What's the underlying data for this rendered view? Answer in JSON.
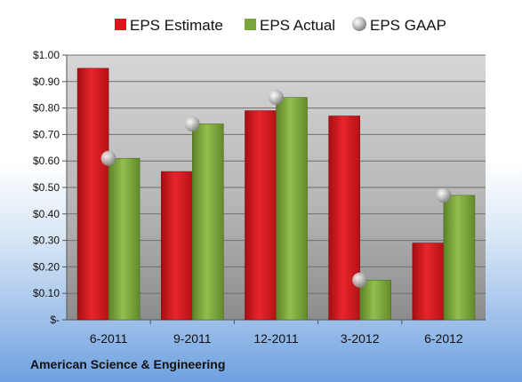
{
  "footer": {
    "company": "American Science & Engineering"
  },
  "colors": {
    "estimate": "#d9151b",
    "actual": "#7aa53a",
    "gaap": "#b8b8b8"
  },
  "chart_data": {
    "type": "bar",
    "title": "",
    "xlabel": "",
    "ylabel": "",
    "categories": [
      "6-2011",
      "9-2011",
      "12-2011",
      "3-2012",
      "6-2012"
    ],
    "y_tick_labels": [
      "$-",
      "$0.10",
      "$0.20",
      "$0.30",
      "$0.40",
      "$0.50",
      "$0.60",
      "$0.70",
      "$0.80",
      "$0.90",
      "$1.00"
    ],
    "ylim": [
      0,
      1.0
    ],
    "grid": true,
    "legend_position": "top",
    "series": [
      {
        "name": "EPS Estimate",
        "type": "bar",
        "values": [
          0.95,
          0.56,
          0.79,
          0.77,
          0.29
        ]
      },
      {
        "name": "EPS Actual",
        "type": "bar",
        "values": [
          0.61,
          0.74,
          0.84,
          0.15,
          0.47
        ]
      },
      {
        "name": "EPS GAAP",
        "type": "marker",
        "values": [
          0.61,
          0.74,
          0.84,
          0.15,
          0.47
        ]
      }
    ]
  }
}
